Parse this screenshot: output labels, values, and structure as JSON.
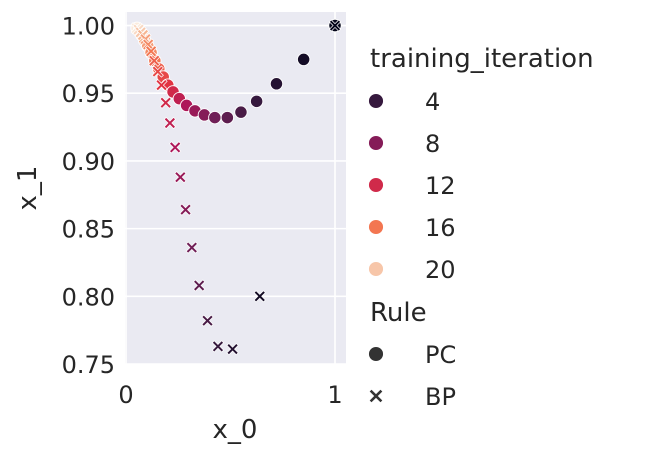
{
  "chart_data": {
    "type": "scatter",
    "xlabel": "x_0",
    "ylabel": "x_1",
    "xlim": [
      0,
      1.0
    ],
    "ylim": [
      0.75,
      1.01
    ],
    "xticks": [
      0,
      1
    ],
    "xtick_labels": [
      "0",
      "1"
    ],
    "yticks": [
      0.75,
      0.8,
      0.85,
      0.9,
      0.95,
      1.0
    ],
    "ytick_labels": [
      "0.75",
      "0.80",
      "0.85",
      "0.90",
      "0.95",
      "1.00"
    ],
    "grid": true,
    "hue": {
      "title": "training_iteration",
      "min": 1,
      "max": 22,
      "legend_values": [
        "4",
        "8",
        "12",
        "16",
        "20"
      ],
      "colors": [
        "#03051a",
        "#36193e",
        "#701f57",
        "#ae1759",
        "#e13342",
        "#f37651",
        "#f6b48f",
        "#faebdd"
      ]
    },
    "style": {
      "title": "Rule",
      "entries": [
        {
          "label": "PC",
          "marker": "circle"
        },
        {
          "label": "BP",
          "marker": "x"
        }
      ]
    },
    "series": [
      {
        "rule": "PC",
        "points": [
          {
            "x": 1.0,
            "y": 1.0,
            "iter": 1
          },
          {
            "x": 0.85,
            "y": 0.975,
            "iter": 2
          },
          {
            "x": 0.72,
            "y": 0.957,
            "iter": 3
          },
          {
            "x": 0.625,
            "y": 0.944,
            "iter": 4
          },
          {
            "x": 0.55,
            "y": 0.936,
            "iter": 5
          },
          {
            "x": 0.485,
            "y": 0.932,
            "iter": 6
          },
          {
            "x": 0.425,
            "y": 0.932,
            "iter": 7
          },
          {
            "x": 0.375,
            "y": 0.934,
            "iter": 8
          },
          {
            "x": 0.33,
            "y": 0.937,
            "iter": 9
          },
          {
            "x": 0.29,
            "y": 0.941,
            "iter": 10
          },
          {
            "x": 0.255,
            "y": 0.946,
            "iter": 11
          },
          {
            "x": 0.225,
            "y": 0.951,
            "iter": 12
          },
          {
            "x": 0.2,
            "y": 0.956,
            "iter": 13
          },
          {
            "x": 0.178,
            "y": 0.962,
            "iter": 14
          },
          {
            "x": 0.157,
            "y": 0.968,
            "iter": 15
          },
          {
            "x": 0.138,
            "y": 0.974,
            "iter": 16
          },
          {
            "x": 0.12,
            "y": 0.98,
            "iter": 17
          },
          {
            "x": 0.104,
            "y": 0.985,
            "iter": 18
          },
          {
            "x": 0.089,
            "y": 0.989,
            "iter": 19
          },
          {
            "x": 0.076,
            "y": 0.993,
            "iter": 20
          },
          {
            "x": 0.064,
            "y": 0.996,
            "iter": 21
          },
          {
            "x": 0.053,
            "y": 0.998,
            "iter": 22
          }
        ]
      },
      {
        "rule": "BP",
        "points": [
          {
            "x": 1.0,
            "y": 1.0,
            "iter": 1
          },
          {
            "x": 0.64,
            "y": 0.8,
            "iter": 2
          },
          {
            "x": 0.51,
            "y": 0.761,
            "iter": 3
          },
          {
            "x": 0.44,
            "y": 0.763,
            "iter": 4
          },
          {
            "x": 0.39,
            "y": 0.782,
            "iter": 5
          },
          {
            "x": 0.35,
            "y": 0.808,
            "iter": 6
          },
          {
            "x": 0.315,
            "y": 0.836,
            "iter": 7
          },
          {
            "x": 0.285,
            "y": 0.864,
            "iter": 8
          },
          {
            "x": 0.26,
            "y": 0.888,
            "iter": 9
          },
          {
            "x": 0.235,
            "y": 0.91,
            "iter": 10
          },
          {
            "x": 0.21,
            "y": 0.928,
            "iter": 11
          },
          {
            "x": 0.19,
            "y": 0.943,
            "iter": 12
          },
          {
            "x": 0.17,
            "y": 0.956,
            "iter": 13
          },
          {
            "x": 0.152,
            "y": 0.966,
            "iter": 14
          },
          {
            "x": 0.135,
            "y": 0.974,
            "iter": 15
          },
          {
            "x": 0.12,
            "y": 0.981,
            "iter": 16
          },
          {
            "x": 0.106,
            "y": 0.986,
            "iter": 17
          },
          {
            "x": 0.093,
            "y": 0.99,
            "iter": 18
          },
          {
            "x": 0.081,
            "y": 0.993,
            "iter": 19
          },
          {
            "x": 0.07,
            "y": 0.995,
            "iter": 20
          },
          {
            "x": 0.06,
            "y": 0.997,
            "iter": 21
          },
          {
            "x": 0.051,
            "y": 0.998,
            "iter": 22
          }
        ]
      }
    ]
  }
}
